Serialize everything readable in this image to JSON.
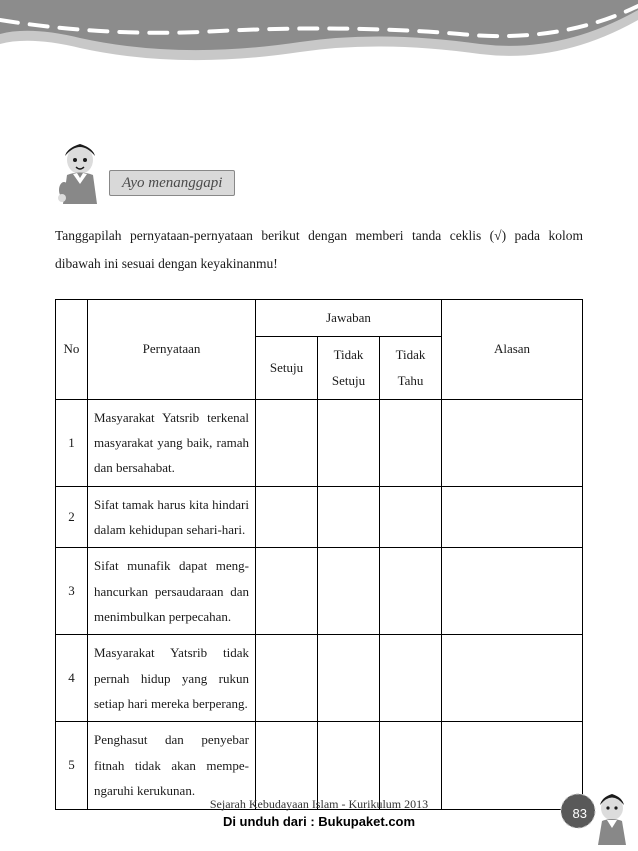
{
  "decoration": {
    "wave_fill": "#8c8c8c",
    "wave_edge": "#c8c8c8",
    "dash_color": "#ffffff",
    "page_bg": "#ffffff"
  },
  "section": {
    "title": "Ayo menanggapi",
    "title_bg": "#d9d9d9",
    "title_border": "#888888",
    "title_color": "#4a4a4a",
    "title_fontsize": 15
  },
  "instruction": "Tanggapilah pernyataan-pernyataan berikut dengan memberi tanda ceklis (√) pada kolom dibawah ini sesuai dengan keyakinanmu!",
  "table": {
    "border_color": "#000000",
    "text_color": "#1a1a1a",
    "fontsize": 13,
    "headers": {
      "no": "No",
      "statement": "Pernyataan",
      "answers_group": "Jawaban",
      "ans1": "Setuju",
      "ans2": "Tidak Setuju",
      "ans3": "Tidak Tahu",
      "reason": "Alasan"
    },
    "rows": [
      {
        "no": "1",
        "statement": "Masyarakat Yatsrib terke­nal masyarakat yang baik, ramah dan bersahabat."
      },
      {
        "no": "2",
        "statement": "Sifat tamak harus kita hindari dalam kehidupan sehari-hari."
      },
      {
        "no": "3",
        "statement": "Sifat munafik dapat meng­hancurkan persaudaraan dan menimbulkan perpe­cahan."
      },
      {
        "no": "4",
        "statement": "Masyarakat Yatsrib tidak pernah hidup yang rukun setiap hari mereka berpe­rang."
      },
      {
        "no": "5",
        "statement": "Penghasut dan penyebar fitnah tidak akan mempe­ngaruhi kerukunan."
      }
    ]
  },
  "footer": {
    "subject": "Sejarah Kebudayaan Islam - Kurikulum 2013",
    "download": "Di unduh dari : Bukupaket.com",
    "page_number": "83",
    "badge_fill": "#595959",
    "badge_text_color": "#ffffff"
  },
  "character": {
    "hat_color": "#1a1a1a",
    "face_color": "#dcdcdc",
    "shirt_color": "#888888",
    "collar_color": "#ffffff"
  }
}
